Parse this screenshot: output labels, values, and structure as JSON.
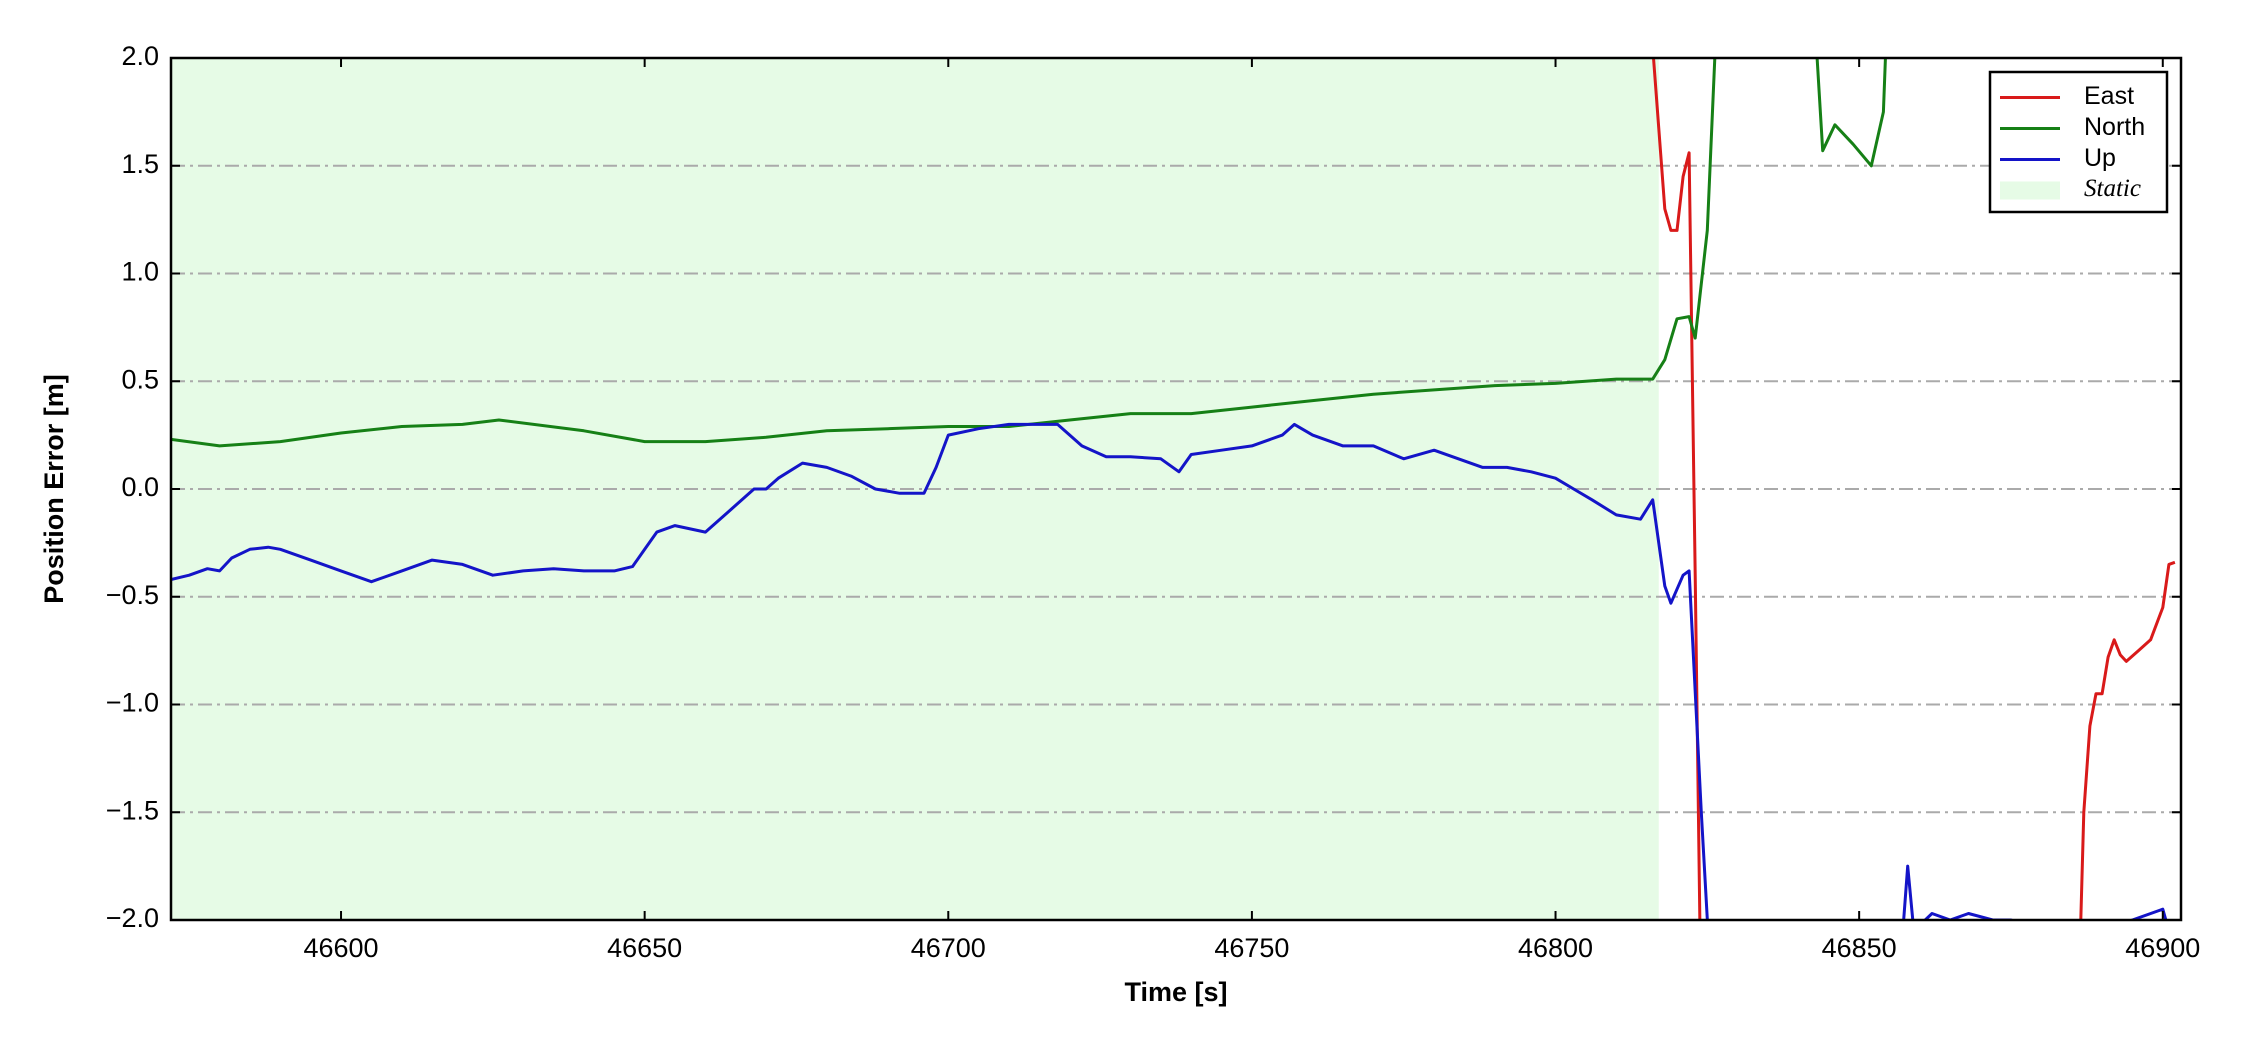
{
  "chart_data": {
    "type": "line",
    "x_label": "Time [s]",
    "y_label": "Position Error [m]",
    "xlim": [
      46572,
      46903
    ],
    "xticks": [
      46600,
      46650,
      46700,
      46750,
      46800,
      46850,
      46900
    ],
    "ylim": [
      -2,
      2
    ],
    "yticks": [
      {
        "value": -2,
        "label": "−2.0"
      },
      {
        "value": -1.5,
        "label": "−1.5"
      },
      {
        "value": -1,
        "label": "−1.0"
      },
      {
        "value": -0.5,
        "label": "−0.5"
      },
      {
        "value": 0,
        "label": "0.0"
      },
      {
        "value": 0.5,
        "label": "0.5"
      },
      {
        "value": 1,
        "label": "1.0"
      },
      {
        "value": 1.5,
        "label": "1.5"
      },
      {
        "value": 2,
        "label": "2.0"
      }
    ],
    "grid": true,
    "legend": "upper right",
    "shaded_span": {
      "name": "Static",
      "color": "#e6fbe6",
      "xlim": [
        46572,
        46817
      ]
    },
    "series": [
      {
        "name": "East",
        "color": "#d91a1a",
        "x": [
          46816,
          46818,
          46819,
          46820,
          46821,
          46822,
          46823,
          46824,
          46886,
          46887,
          46888,
          46889,
          46890,
          46891,
          46892,
          46893,
          46894,
          46896,
          46898,
          46900,
          46901,
          46902
        ],
        "values": [
          2.05,
          1.3,
          1.2,
          1.2,
          1.45,
          1.56,
          -0.4,
          -2.5,
          -2.5,
          -1.5,
          -1.1,
          -0.95,
          -0.95,
          -0.78,
          -0.7,
          -0.77,
          -0.8,
          -0.75,
          -0.7,
          -0.55,
          -0.35,
          -0.34
        ]
      },
      {
        "name": "North",
        "color": "#168016",
        "x": [
          46572,
          46580,
          46590,
          46600,
          46610,
          46620,
          46626,
          46640,
          46650,
          46660,
          46670,
          46680,
          46690,
          46700,
          46710,
          46720,
          46730,
          46740,
          46750,
          46760,
          46770,
          46780,
          46790,
          46800,
          46810,
          46816,
          46818,
          46820,
          46822,
          46823,
          46825,
          46827,
          46842,
          46844,
          46846,
          46849,
          46852,
          46854,
          46855,
          46901,
          46902
        ],
        "values": [
          0.23,
          0.2,
          0.22,
          0.26,
          0.29,
          0.3,
          0.32,
          0.27,
          0.22,
          0.22,
          0.24,
          0.27,
          0.28,
          0.29,
          0.29,
          0.32,
          0.35,
          0.35,
          0.38,
          0.41,
          0.44,
          0.46,
          0.48,
          0.49,
          0.51,
          0.51,
          0.6,
          0.79,
          0.8,
          0.7,
          1.2,
          2.5,
          2.5,
          1.57,
          1.69,
          1.6,
          1.5,
          1.75,
          2.5,
          2.5,
          2.0
        ]
      },
      {
        "name": "Up",
        "color": "#1414c8",
        "x": [
          46572,
          46575,
          46578,
          46580,
          46582,
          46585,
          46588,
          46590,
          46595,
          46600,
          46605,
          46610,
          46615,
          46620,
          46625,
          46630,
          46635,
          46640,
          46645,
          46648,
          46650,
          46652,
          46655,
          46660,
          46664,
          46668,
          46670,
          46672,
          46676,
          46680,
          46684,
          46688,
          46692,
          46696,
          46698,
          46700,
          46705,
          46710,
          46715,
          46718,
          46722,
          46726,
          46730,
          46735,
          46738,
          46740,
          46745,
          46750,
          46755,
          46757,
          46760,
          46765,
          46770,
          46775,
          46780,
          46784,
          46788,
          46792,
          46796,
          46800,
          46803,
          46806,
          46810,
          46814,
          46816,
          46818,
          46819,
          46821,
          46822,
          46824,
          46826,
          46856,
          46858,
          46859,
          46862,
          46865,
          46868,
          46872,
          46875,
          46880,
          46890,
          46895,
          46900,
          46901
        ],
        "values": [
          -0.42,
          -0.4,
          -0.37,
          -0.38,
          -0.32,
          -0.28,
          -0.27,
          -0.28,
          -0.33,
          -0.38,
          -0.43,
          -0.38,
          -0.33,
          -0.35,
          -0.4,
          -0.38,
          -0.37,
          -0.38,
          -0.38,
          -0.36,
          -0.28,
          -0.2,
          -0.17,
          -0.2,
          -0.1,
          0.0,
          0.0,
          0.05,
          0.12,
          0.1,
          0.06,
          0.0,
          -0.02,
          -0.02,
          0.1,
          0.25,
          0.28,
          0.3,
          0.3,
          0.3,
          0.2,
          0.15,
          0.15,
          0.14,
          0.08,
          0.16,
          0.18,
          0.2,
          0.25,
          0.3,
          0.25,
          0.2,
          0.2,
          0.14,
          0.18,
          0.14,
          0.1,
          0.1,
          0.08,
          0.05,
          0.0,
          -0.05,
          -0.12,
          -0.14,
          -0.05,
          -0.45,
          -0.53,
          -0.4,
          -0.38,
          -1.5,
          -2.5,
          -2.5,
          -1.75,
          -2.05,
          -1.97,
          -2.0,
          -1.97,
          -2.0,
          -2.0,
          -2.05,
          -2.05,
          -2.0,
          -1.95,
          -2.05
        ]
      }
    ]
  }
}
